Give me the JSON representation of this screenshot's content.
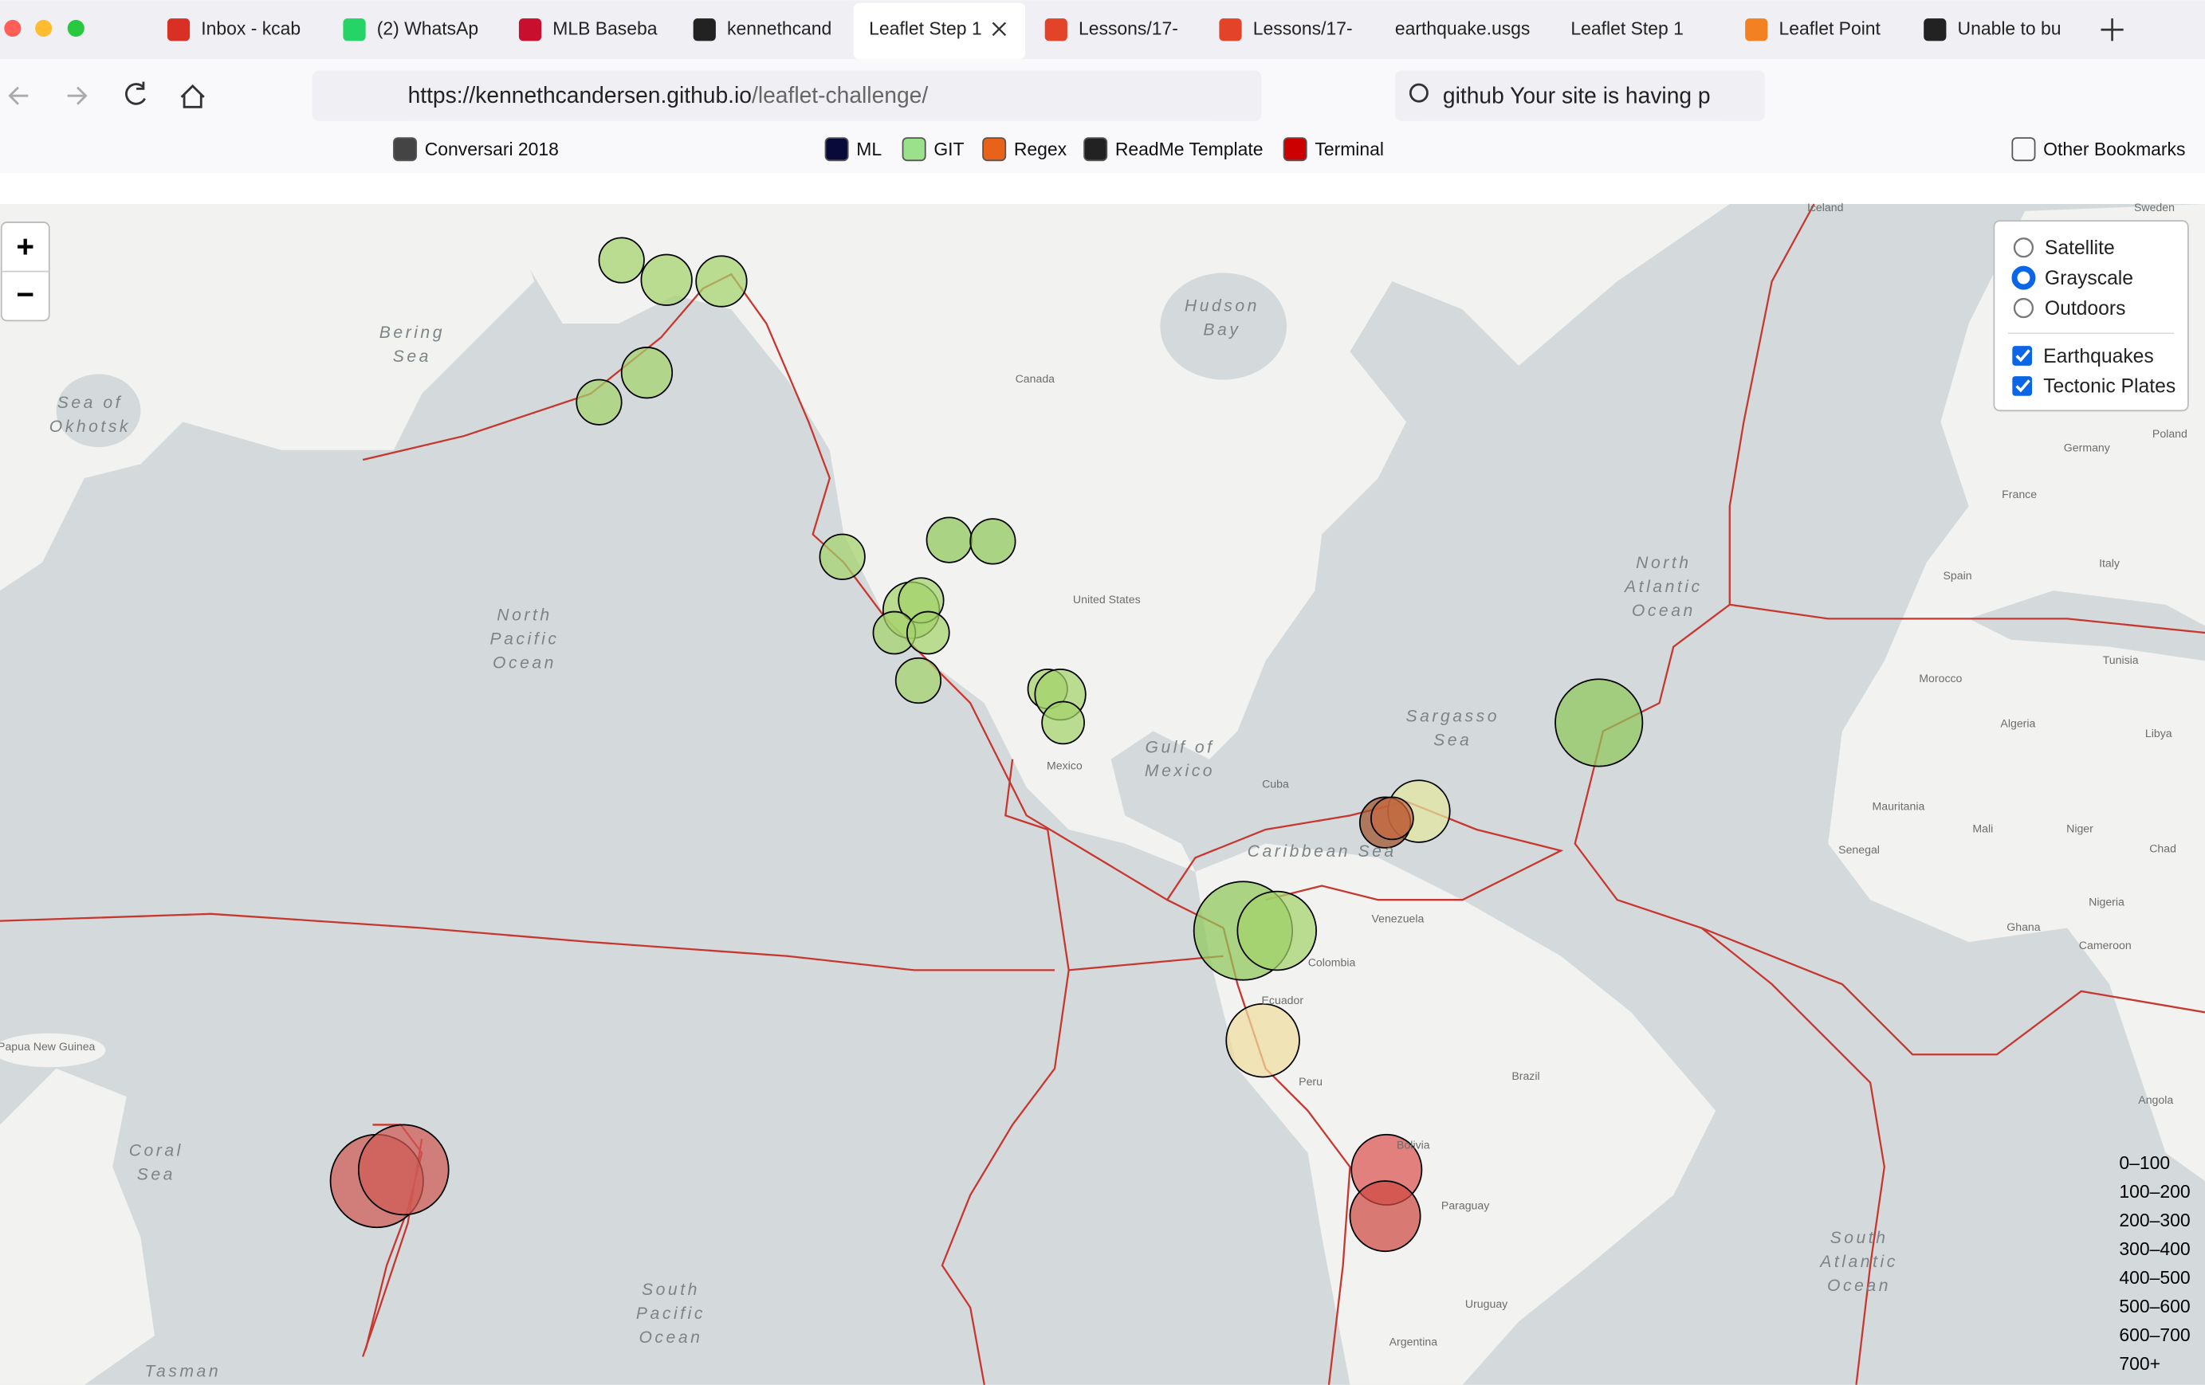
{
  "browser": {
    "tabs": [
      "Inbox - kcab",
      "(2) WhatsAp",
      "MLB Baseba",
      "kennethcand",
      "Leaflet Step 1",
      "Lessons/17-",
      "Lessons/17-",
      "earthquake.usgs",
      "Leaflet Step 1",
      "Leaflet Point",
      "Unable to bu"
    ],
    "url": {
      "host": "https://kennethcandersen.github.io",
      "path": "/leaflet-challenge/"
    },
    "search": "github Your site is having p",
    "bookmarks": [
      "Conversari 2018",
      "ML",
      "GIT",
      "Regex",
      "ReadMe Template",
      "Terminal",
      "Other Bookmarks"
    ]
  },
  "map": {
    "zoom_in": "+",
    "zoom_out": "−",
    "base_layers": [
      "Satellite",
      "Grayscale",
      "Outdoors"
    ],
    "overlays": [
      "Earthquakes",
      "Tectonic Plates"
    ],
    "legend": [
      "0–100",
      "100–200",
      "200–300",
      "300–400",
      "400–500",
      "500–600",
      "600–700",
      "700+"
    ],
    "ocean_labels": [
      [
        "North",
        "Pacific",
        "Ocean"
      ],
      [
        "South",
        "Pacific",
        "Ocean"
      ],
      [
        "North",
        "Atlantic",
        "Ocean"
      ],
      [
        "South",
        "Atlantic",
        "Ocean"
      ],
      [
        "Sargasso",
        "Sea"
      ],
      [
        "Hudson",
        "Bay"
      ],
      [
        "Bering",
        "Sea"
      ],
      [
        "Coral",
        "Sea"
      ],
      [
        "Sea of",
        "Okhotsk"
      ],
      [
        "Gulf of",
        "Mexico"
      ],
      [
        "Caribbean Sea"
      ],
      [
        "Tasman"
      ]
    ],
    "place_labels": [
      "Canada",
      "United States",
      "Mexico",
      "Cuba",
      "Venezuela",
      "Colombia",
      "Ecuador",
      "Peru",
      "Brazil",
      "Bolivia",
      "Paraguay",
      "Argentina",
      "Uruguay",
      "Morocco",
      "Algeria",
      "Libya",
      "Mali",
      "Niger",
      "Chad",
      "Nigeria",
      "Spain",
      "France",
      "Germany",
      "Poland",
      "Italy",
      "Tunisia",
      "Mauritania",
      "Senegal",
      "Angola",
      "Cameroon",
      "Ghana",
      "Iceland",
      "Sweden",
      "Papua New Guinea"
    ]
  }
}
